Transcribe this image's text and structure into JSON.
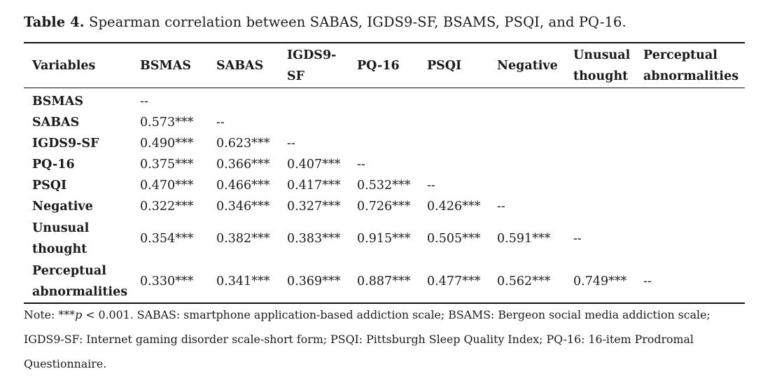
{
  "caption": {
    "label": "Table 4.",
    "text": "Spearman correlation between SABAS, IGDS9-SF, BSAMS, PSQI, and PQ-16."
  },
  "columns": [
    "Variables",
    "BSMAS",
    "SABAS",
    "IGDS9-SF",
    "PQ-16",
    "PSQI",
    "Negative",
    "Unusual thought",
    "Perceptual abnormalities"
  ],
  "rows": [
    {
      "label": "BSMAS",
      "cells": [
        "--",
        "",
        "",
        "",
        "",
        "",
        "",
        ""
      ]
    },
    {
      "label": "SABAS",
      "cells": [
        "0.573***",
        "--",
        "",
        "",
        "",
        "",
        "",
        ""
      ]
    },
    {
      "label": "IGDS9-SF",
      "cells": [
        "0.490***",
        "0.623***",
        "--",
        "",
        "",
        "",
        "",
        ""
      ]
    },
    {
      "label": "PQ-16",
      "cells": [
        "0.375***",
        "0.366***",
        "0.407***",
        "--",
        "",
        "",
        "",
        ""
      ]
    },
    {
      "label": "PSQI",
      "cells": [
        "0.470***",
        "0.466***",
        "0.417***",
        "0.532***",
        "--",
        "",
        "",
        ""
      ]
    },
    {
      "label": "Negative",
      "cells": [
        "0.322***",
        "0.346***",
        "0.327***",
        "0.726***",
        "0.426***",
        "--",
        "",
        ""
      ]
    },
    {
      "label": "Unusual thought",
      "cells": [
        "0.354***",
        "0.382***",
        "0.383***",
        "0.915***",
        "0.505***",
        "0.591***",
        "--",
        ""
      ]
    },
    {
      "label": "Perceptual abnormalities",
      "cells": [
        "0.330***",
        "0.341***",
        "0.369***",
        "0.887***",
        "0.477***",
        "0.562***",
        "0.749***",
        "--"
      ]
    }
  ],
  "note": {
    "lead": "Note: ***",
    "p_symbol": "p",
    "text": " < 0.001. SABAS: smartphone application-based addiction scale; BSAMS: Bergeon social media addiction scale; IGDS9-SF: Internet gaming disorder scale-short form; PSQI: Pittsburgh Sleep Quality Index; PQ-16: 16-item Prodromal Questionnaire."
  }
}
